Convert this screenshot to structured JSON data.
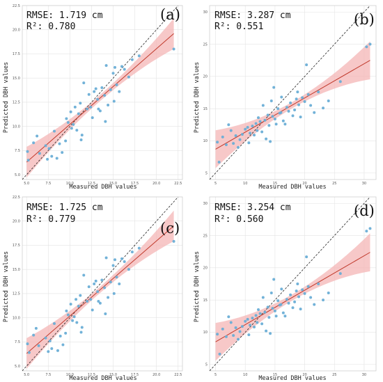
{
  "chart_data": [
    {
      "type": "scatter",
      "panel_label": "(a)",
      "rmse_text": "RMSE: 1.719 cm",
      "r2_text": "R²: 0.780",
      "xlabel": "Measured DBH values",
      "ylabel": "Predicted DBH values",
      "xlim": [
        4.5,
        23
      ],
      "ylim": [
        4.5,
        22.5
      ],
      "xticks": [
        "5.0",
        "7.5",
        "10.0",
        "12.5",
        "15.0",
        "17.5",
        "20.0",
        "22.5"
      ],
      "yticks": [
        "5.0",
        "7.5",
        "10.0",
        "12.5",
        "15.0",
        "17.5",
        "20.0",
        "22.5"
      ],
      "grid": true,
      "fit": {
        "x": [
          5,
          22
        ],
        "y": [
          6.3,
          19.6
        ]
      },
      "identity_line": true,
      "points": [
        [
          5.1,
          7.4
        ],
        [
          5.2,
          6.5
        ],
        [
          5.8,
          8.3
        ],
        [
          6.2,
          9.0
        ],
        [
          6.5,
          7.2
        ],
        [
          7.2,
          8.0
        ],
        [
          7.4,
          6.6
        ],
        [
          7.6,
          7.7
        ],
        [
          7.9,
          6.9
        ],
        [
          8.2,
          9.5
        ],
        [
          8.5,
          6.7
        ],
        [
          8.8,
          8.2
        ],
        [
          9.1,
          7.3
        ],
        [
          9.5,
          8.5
        ],
        [
          10.1,
          11.5
        ],
        [
          10.2,
          9.8
        ],
        [
          10.4,
          10.2
        ],
        [
          10.6,
          12.0
        ],
        [
          10.8,
          9.6
        ],
        [
          11.0,
          11.3
        ],
        [
          11.2,
          12.4
        ],
        [
          11.3,
          8.6
        ],
        [
          11.4,
          9.1
        ],
        [
          11.6,
          14.5
        ],
        [
          12.0,
          11.8
        ],
        [
          12.2,
          13.3
        ],
        [
          12.4,
          12.0
        ],
        [
          12.6,
          10.9
        ],
        [
          12.8,
          13.6
        ],
        [
          13.0,
          13.9
        ],
        [
          13.2,
          12.8
        ],
        [
          13.5,
          11.6
        ],
        [
          13.7,
          14.0
        ],
        [
          14.0,
          13.2
        ],
        [
          14.2,
          16.3
        ],
        [
          14.4,
          12.2
        ],
        [
          14.7,
          13.8
        ],
        [
          15.0,
          15.5
        ],
        [
          15.2,
          16.1
        ],
        [
          15.4,
          14.3
        ],
        [
          15.7,
          13.6
        ],
        [
          16.0,
          16.2
        ],
        [
          16.3,
          15.9
        ],
        [
          17.2,
          16.9
        ],
        [
          18.0,
          17.3
        ],
        [
          22.0,
          18.0
        ],
        [
          9.8,
          10.4
        ],
        [
          9.6,
          10.8
        ],
        [
          14.1,
          10.5
        ],
        [
          15.1,
          12.6
        ],
        [
          16.8,
          15.1
        ],
        [
          13.3,
          11.8
        ]
      ]
    },
    {
      "type": "scatter",
      "panel_label": "(b)",
      "rmse_text": "RMSE: 3.287 cm",
      "r2_text": "R²: 0.551",
      "xlabel": "Measured DBH values",
      "ylabel": "Predicted DBH values",
      "xlim": [
        4,
        32
      ],
      "ylim": [
        4,
        31
      ],
      "xticks": [
        "5",
        "10",
        "15",
        "20",
        "25",
        "30"
      ],
      "yticks": [
        "5",
        "10",
        "15",
        "20",
        "25",
        "30"
      ],
      "grid": true,
      "fit": {
        "x": [
          5,
          31
        ],
        "y": [
          8.7,
          22.5
        ]
      },
      "identity_line": true,
      "points": [
        [
          5.3,
          9.8
        ],
        [
          5.6,
          6.7
        ],
        [
          6.2,
          10.6
        ],
        [
          6.8,
          9.4
        ],
        [
          7.2,
          12.5
        ],
        [
          7.6,
          11.6
        ],
        [
          8.0,
          9.6
        ],
        [
          8.4,
          10.8
        ],
        [
          8.8,
          9.0
        ],
        [
          9.1,
          10.2
        ],
        [
          9.5,
          11.0
        ],
        [
          10.0,
          11.8
        ],
        [
          10.4,
          12.1
        ],
        [
          10.8,
          11.2
        ],
        [
          11.2,
          12.3
        ],
        [
          11.5,
          10.9
        ],
        [
          11.8,
          12.7
        ],
        [
          12.2,
          13.6
        ],
        [
          12.5,
          13.0
        ],
        [
          12.8,
          11.4
        ],
        [
          13.0,
          15.5
        ],
        [
          13.3,
          13.2
        ],
        [
          13.5,
          10.3
        ],
        [
          13.8,
          14.0
        ],
        [
          14.0,
          12.4
        ],
        [
          14.2,
          9.9
        ],
        [
          14.4,
          16.2
        ],
        [
          14.6,
          13.8
        ],
        [
          14.8,
          18.3
        ],
        [
          15.0,
          13.4
        ],
        [
          15.2,
          12.6
        ],
        [
          15.5,
          15.0
        ],
        [
          15.8,
          14.3
        ],
        [
          16.1,
          16.8
        ],
        [
          16.4,
          13.1
        ],
        [
          16.7,
          12.6
        ],
        [
          17.0,
          15.2
        ],
        [
          17.3,
          14.6
        ],
        [
          17.6,
          15.9
        ],
        [
          18.0,
          13.9
        ],
        [
          18.3,
          14.8
        ],
        [
          18.6,
          16.5
        ],
        [
          19.0,
          15.6
        ],
        [
          19.3,
          13.7
        ],
        [
          19.6,
          16.7
        ],
        [
          20.0,
          16.1
        ],
        [
          20.3,
          21.8
        ],
        [
          20.6,
          17.2
        ],
        [
          21.0,
          15.5
        ],
        [
          21.6,
          14.4
        ],
        [
          22.3,
          17.6
        ],
        [
          23.1,
          15.1
        ],
        [
          24.0,
          16.2
        ],
        [
          26.0,
          19.2
        ],
        [
          30.4,
          24.6
        ],
        [
          31.0,
          25.0
        ],
        [
          12.0,
          11.6
        ],
        [
          16.0,
          14.4
        ],
        [
          18.8,
          17.6
        ],
        [
          10.6,
          9.7
        ]
      ]
    },
    {
      "type": "scatter",
      "panel_label": "(c)",
      "rmse_text": "RMSE: 1.725 cm",
      "r2_text": "R²: 0.779",
      "xlabel": "Measured DBH values",
      "ylabel": "Predicted DBH values",
      "xlim": [
        4.5,
        23
      ],
      "ylim": [
        4.5,
        22.5
      ],
      "xticks": [
        "5.0",
        "7.5",
        "10.0",
        "12.5",
        "15.0",
        "17.5",
        "20.0",
        "22.5"
      ],
      "yticks": [
        "5.0",
        "7.5",
        "10.0",
        "12.5",
        "15.0",
        "17.5",
        "20.0",
        "22.5"
      ],
      "grid": true,
      "fit": {
        "x": [
          5,
          22
        ],
        "y": [
          6.3,
          19.5
        ]
      },
      "identity_line": true,
      "points": [
        [
          5.1,
          7.3
        ],
        [
          5.3,
          6.4
        ],
        [
          5.8,
          8.2
        ],
        [
          6.1,
          8.9
        ],
        [
          6.4,
          7.1
        ],
        [
          7.2,
          7.9
        ],
        [
          7.5,
          6.5
        ],
        [
          7.7,
          7.6
        ],
        [
          7.9,
          6.8
        ],
        [
          8.2,
          9.4
        ],
        [
          8.6,
          6.6
        ],
        [
          8.9,
          8.1
        ],
        [
          9.2,
          7.2
        ],
        [
          9.5,
          8.4
        ],
        [
          10.1,
          11.4
        ],
        [
          10.3,
          9.7
        ],
        [
          10.5,
          10.1
        ],
        [
          10.7,
          11.9
        ],
        [
          10.8,
          9.5
        ],
        [
          11.0,
          11.2
        ],
        [
          11.2,
          12.3
        ],
        [
          11.3,
          8.5
        ],
        [
          11.4,
          9.0
        ],
        [
          11.6,
          14.4
        ],
        [
          12.0,
          11.7
        ],
        [
          12.2,
          13.2
        ],
        [
          12.4,
          11.9
        ],
        [
          12.6,
          10.8
        ],
        [
          12.8,
          13.5
        ],
        [
          13.0,
          13.8
        ],
        [
          13.2,
          12.7
        ],
        [
          13.5,
          11.5
        ],
        [
          13.7,
          13.9
        ],
        [
          14.0,
          13.1
        ],
        [
          14.2,
          16.2
        ],
        [
          14.4,
          12.1
        ],
        [
          14.7,
          13.7
        ],
        [
          15.0,
          15.4
        ],
        [
          15.2,
          16.0
        ],
        [
          15.4,
          14.2
        ],
        [
          15.7,
          13.5
        ],
        [
          16.0,
          16.1
        ],
        [
          16.3,
          15.8
        ],
        [
          17.2,
          16.8
        ],
        [
          18.0,
          17.2
        ],
        [
          22.0,
          17.9
        ],
        [
          9.8,
          10.3
        ],
        [
          9.6,
          10.7
        ],
        [
          14.1,
          10.4
        ],
        [
          15.1,
          12.5
        ],
        [
          16.8,
          15.0
        ],
        [
          13.3,
          11.7
        ]
      ]
    },
    {
      "type": "scatter",
      "panel_label": "(d)",
      "rmse_text": "RMSE: 3.254 cm",
      "r2_text": "R²: 0.560",
      "xlabel": "Measured DBH values",
      "ylabel": "Predicted DBH values",
      "xlim": [
        4,
        32
      ],
      "ylim": [
        4,
        31
      ],
      "xticks": [
        "5",
        "10",
        "15",
        "20",
        "25",
        "30"
      ],
      "yticks": [
        "5",
        "10",
        "15",
        "20",
        "25",
        "30"
      ],
      "grid": true,
      "fit": {
        "x": [
          5,
          31
        ],
        "y": [
          8.5,
          22.4
        ]
      },
      "identity_line": true,
      "points": [
        [
          5.3,
          9.7
        ],
        [
          5.7,
          6.6
        ],
        [
          6.2,
          10.5
        ],
        [
          6.8,
          9.3
        ],
        [
          7.2,
          12.4
        ],
        [
          7.6,
          11.5
        ],
        [
          8.0,
          9.5
        ],
        [
          8.4,
          10.7
        ],
        [
          8.8,
          8.9
        ],
        [
          9.1,
          10.1
        ],
        [
          9.5,
          10.9
        ],
        [
          10.0,
          11.7
        ],
        [
          10.4,
          12.0
        ],
        [
          10.8,
          11.1
        ],
        [
          11.2,
          12.2
        ],
        [
          11.5,
          10.8
        ],
        [
          11.8,
          12.6
        ],
        [
          12.2,
          13.5
        ],
        [
          12.5,
          12.9
        ],
        [
          12.8,
          11.3
        ],
        [
          13.0,
          15.4
        ],
        [
          13.3,
          13.1
        ],
        [
          13.5,
          10.2
        ],
        [
          13.8,
          13.9
        ],
        [
          14.0,
          12.3
        ],
        [
          14.2,
          9.8
        ],
        [
          14.4,
          16.1
        ],
        [
          14.6,
          13.7
        ],
        [
          14.8,
          18.2
        ],
        [
          15.0,
          13.3
        ],
        [
          15.2,
          12.5
        ],
        [
          15.5,
          14.9
        ],
        [
          15.8,
          14.2
        ],
        [
          16.1,
          16.7
        ],
        [
          16.4,
          13.0
        ],
        [
          16.7,
          12.5
        ],
        [
          17.0,
          15.1
        ],
        [
          17.3,
          14.5
        ],
        [
          17.6,
          15.8
        ],
        [
          18.0,
          13.8
        ],
        [
          18.3,
          14.7
        ],
        [
          18.6,
          16.4
        ],
        [
          19.0,
          15.5
        ],
        [
          19.3,
          13.6
        ],
        [
          19.6,
          16.6
        ],
        [
          20.0,
          16.0
        ],
        [
          20.3,
          21.7
        ],
        [
          20.6,
          17.1
        ],
        [
          21.0,
          15.4
        ],
        [
          21.6,
          14.3
        ],
        [
          22.3,
          17.5
        ],
        [
          23.1,
          15.0
        ],
        [
          24.0,
          16.1
        ],
        [
          26.0,
          19.1
        ],
        [
          30.4,
          25.7
        ],
        [
          31.0,
          26.1
        ],
        [
          12.0,
          11.5
        ],
        [
          16.0,
          14.3
        ],
        [
          18.8,
          17.5
        ],
        [
          10.6,
          9.6
        ]
      ]
    }
  ]
}
